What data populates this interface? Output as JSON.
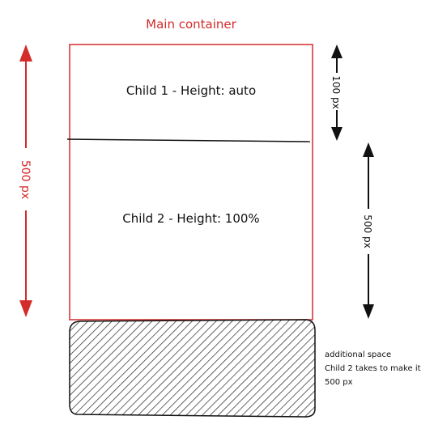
{
  "title": "Main container",
  "child1_label": "Child 1 - Height: auto",
  "child2_label": "Child 2 - Height: 100%",
  "dim_container": "500 px",
  "dim_child1": "100 px",
  "dim_child2": "500 px",
  "note_lines": [
    "additional space",
    "Child 2 takes to make it",
    "500 px"
  ],
  "colors": {
    "container": "#d42b2b",
    "ink": "#111111"
  }
}
